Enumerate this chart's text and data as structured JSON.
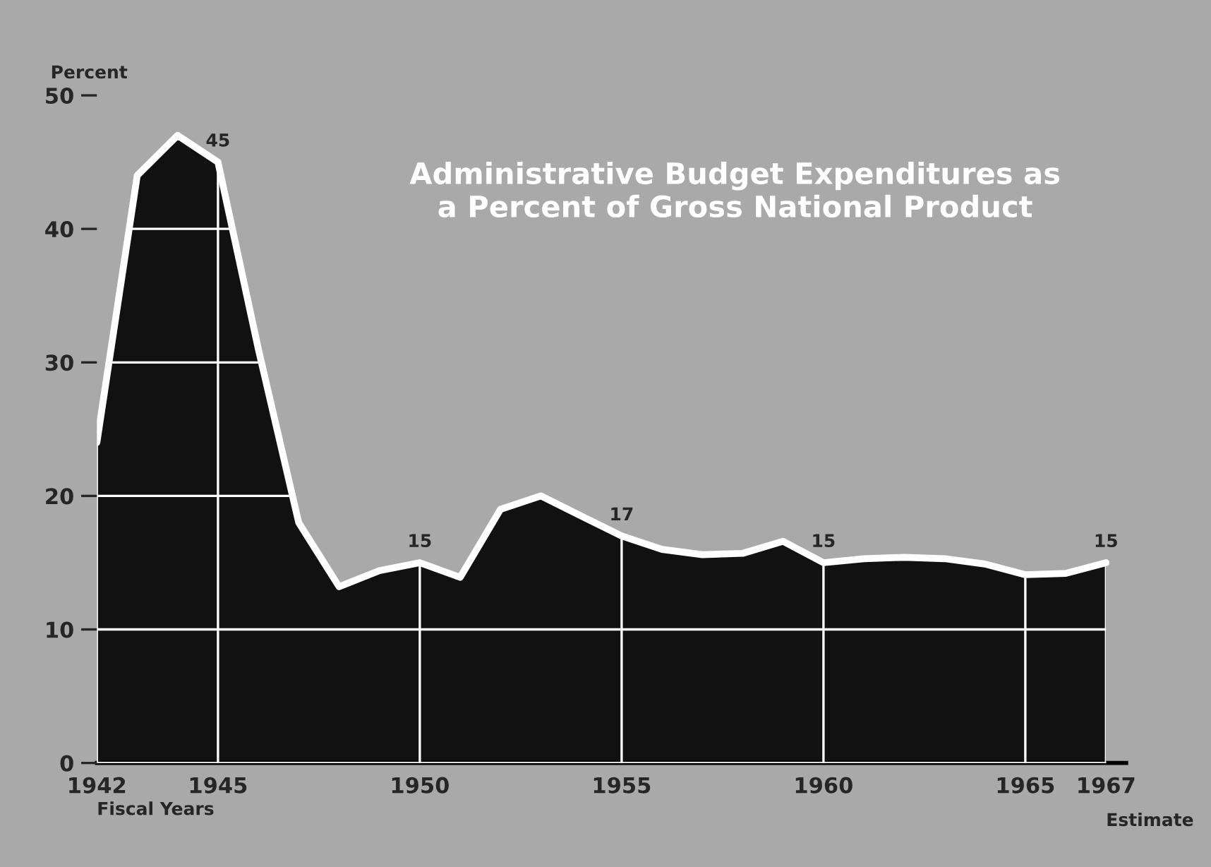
{
  "chart_data": {
    "type": "area",
    "title": "Administrative Budget Expenditures as\na Percent of Gross National Product",
    "xlabel": "Fiscal Years",
    "ylabel": "Percent",
    "x": [
      1942,
      1943,
      1944,
      1945,
      1946,
      1947,
      1948,
      1949,
      1950,
      1951,
      1952,
      1953,
      1954,
      1955,
      1956,
      1957,
      1958,
      1959,
      1960,
      1961,
      1962,
      1963,
      1964,
      1965,
      1966,
      1967
    ],
    "series": [
      {
        "color": "#111111",
        "values": [
          24,
          44,
          47,
          45,
          31,
          18,
          13.2,
          14.4,
          15,
          13.9,
          19,
          20,
          18.5,
          17,
          16,
          15.6,
          15.7,
          16.6,
          15,
          15.3,
          15.4,
          15.3,
          14.9,
          14.1,
          14.2,
          15
        ],
        "value_labels": [
          null,
          null,
          null,
          "45",
          null,
          null,
          null,
          null,
          "15",
          null,
          null,
          null,
          null,
          "17",
          null,
          null,
          null,
          null,
          "15",
          null,
          null,
          null,
          null,
          null,
          null,
          "15"
        ]
      }
    ],
    "xlim": [
      1942,
      1967.5
    ],
    "xticks": [
      1942,
      1945,
      1950,
      1955,
      1960,
      1965,
      1967
    ],
    "ylim": [
      0,
      50
    ],
    "yticks": [
      0,
      10,
      20,
      30,
      40,
      50
    ],
    "grid": true,
    "annotations": [
      {
        "text": "Estimate",
        "x": 1967,
        "y": 0
      }
    ]
  }
}
